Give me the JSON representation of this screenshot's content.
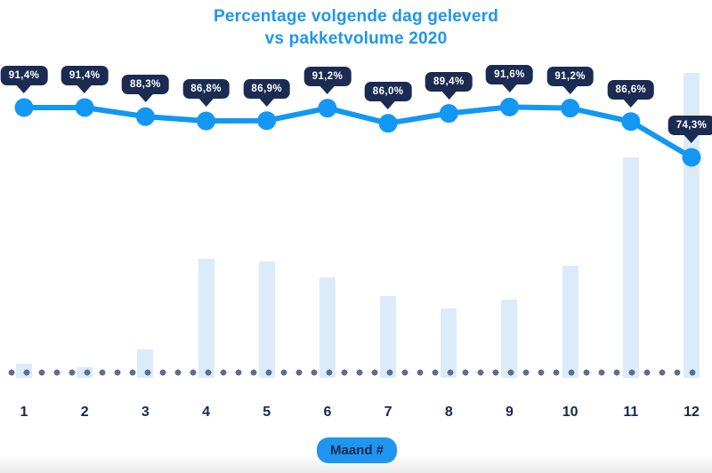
{
  "title": {
    "line1": "Percentage volgende dag geleverd",
    "line2": "vs pakketvolume 2020"
  },
  "colors": {
    "title_blue": "#1e96f0",
    "line_blue": "#1297f2",
    "bar_light_blue": "#dcebf9",
    "tooltip_navy": "#1b2b52",
    "label_navy": "#16294f",
    "baseline_dot_gray": "#5c6f92",
    "badge_blue": "#1e96f0"
  },
  "chart_data": {
    "type": "line+bar combo",
    "title": "Percentage volgende dag geleverd vs pakketvolume 2020",
    "xlabel": "Maand #",
    "ylabel": "",
    "categories": [
      "1",
      "2",
      "3",
      "4",
      "5",
      "6",
      "7",
      "8",
      "9",
      "10",
      "11",
      "12"
    ],
    "legend": "none",
    "grid": "off",
    "y_axis_shown": false,
    "series": [
      {
        "name": "Percentage volgende dag geleverd",
        "type": "line",
        "unit": "%",
        "values": [
          91.4,
          91.4,
          88.3,
          86.8,
          86.9,
          91.2,
          86.0,
          89.4,
          91.6,
          91.2,
          86.6,
          74.3
        ],
        "data_labels": [
          "91,4%",
          "91,4%",
          "88,3%",
          "86,8%",
          "86,9%",
          "91,2%",
          "86,0%",
          "89,4%",
          "91,6%",
          "91,2%",
          "86,6%",
          "74,3%"
        ]
      },
      {
        "name": "pakketvolume 2020",
        "type": "bar",
        "unit": "relative (no axis shown, % of max month)",
        "values": [
          4.7,
          3.5,
          9.3,
          39.1,
          38.2,
          32.9,
          26.8,
          22.7,
          25.7,
          36.7,
          72.3,
          100
        ]
      }
    ]
  }
}
